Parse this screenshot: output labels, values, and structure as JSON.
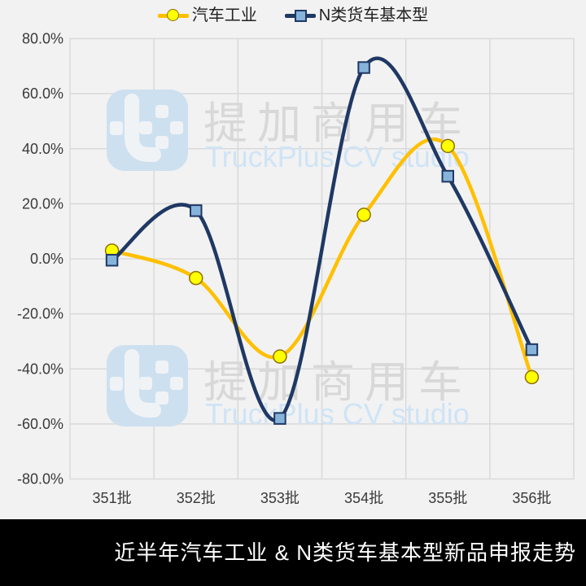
{
  "colors": {
    "background": "#f2f2f2",
    "gridline": "#d9d9d9",
    "axis_text": "#3a3a3a",
    "gold": "#ffc000",
    "navy": "#1f3864",
    "marker_yellow": "#ffff00",
    "marker_yellow_border": "#8f7000",
    "marker_square_fill": "#86b3d9",
    "footer_bg": "#000000",
    "footer_text": "#ffffff",
    "watermark_gray": "#d8d8d8",
    "watermark_blue": "#cfe4f6",
    "watermark_logo_blue": "#cde0f0"
  },
  "chart_data": {
    "type": "line",
    "smooth": true,
    "categories": [
      "351批",
      "352批",
      "353批",
      "354批",
      "355批",
      "356批"
    ],
    "series": [
      {
        "name": "汽车工业",
        "color": "#ffc000",
        "marker": "circle",
        "marker_fill": "#ffff00",
        "marker_stroke": "#8f7000",
        "values": [
          3,
          -7,
          -35.5,
          16,
          41,
          -43
        ]
      },
      {
        "name": "N类货车基本型",
        "color": "#1f3864",
        "marker": "square",
        "marker_fill": "#86b3d9",
        "marker_stroke": "#1f3864",
        "values": [
          -0.5,
          17.5,
          -58,
          69.5,
          30,
          -33
        ]
      }
    ],
    "ylim": [
      -80,
      80
    ],
    "ytick_step": 20,
    "ytick_decimals": 1,
    "ytick_suffix": "%",
    "grid": true,
    "legend_position": "top"
  },
  "watermark": {
    "cn": "提加商用车",
    "en": "TruckPlus CV studio"
  },
  "footer": {
    "title": "近半年汽车工业 & N类货车基本型新品申报走势"
  }
}
